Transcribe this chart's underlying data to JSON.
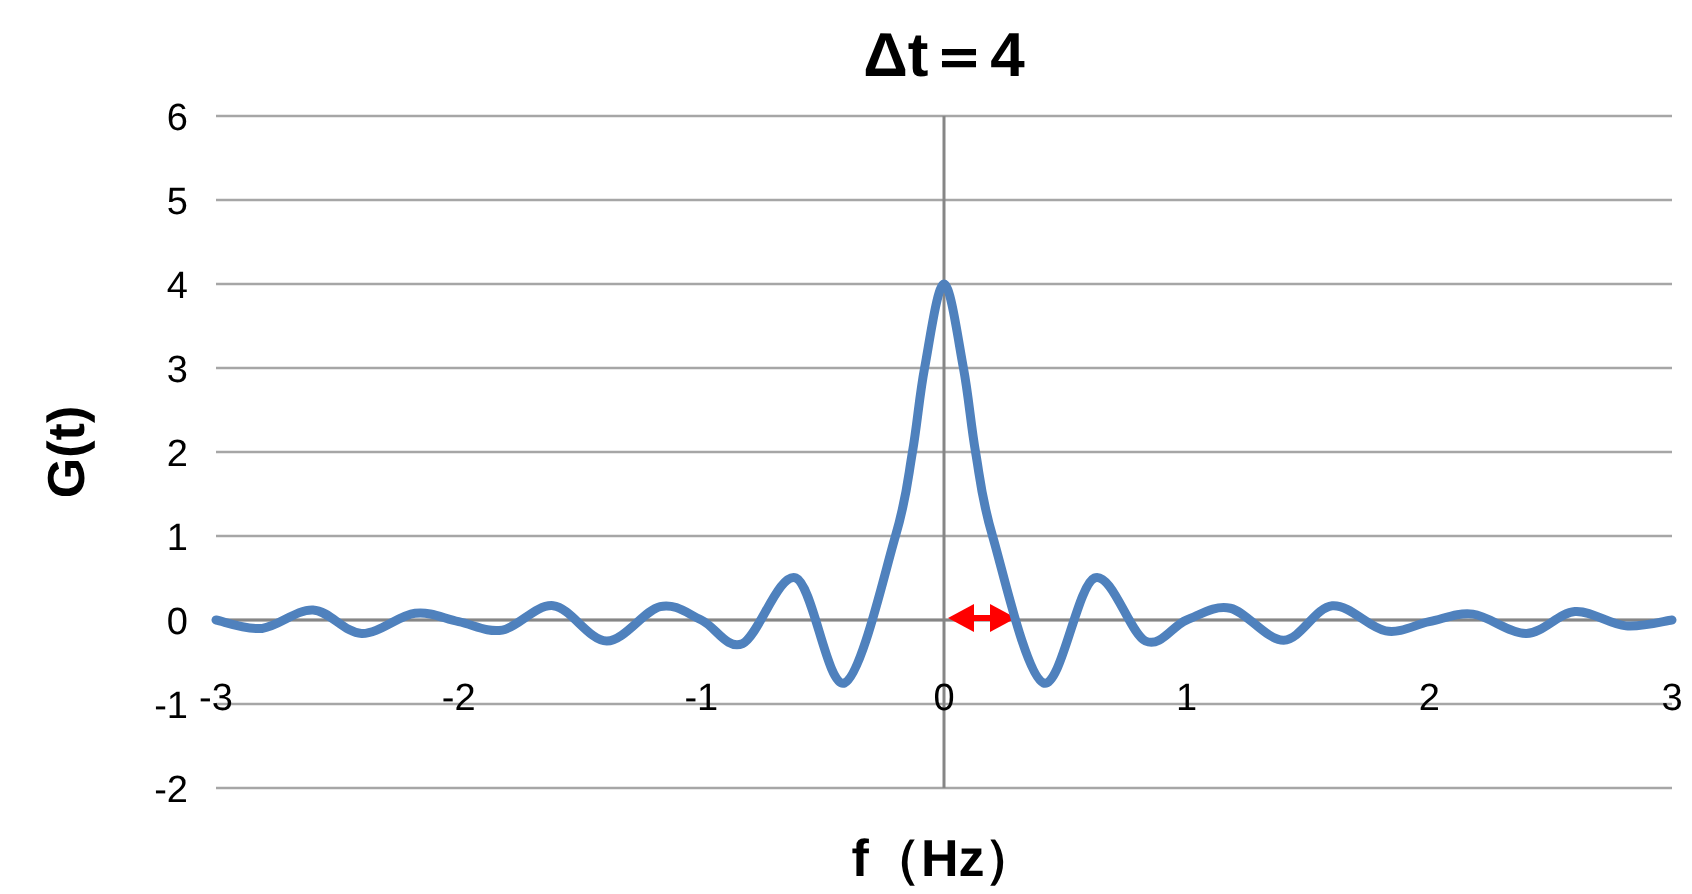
{
  "chart_data": {
    "type": "line",
    "title": "Δt＝4",
    "xlabel": "f（Hz）",
    "ylabel": "G(t)",
    "x": [
      -3,
      -2.81,
      -2.6,
      -2.4,
      -2.18,
      -2,
      -1.82,
      -1.61,
      -1.39,
      -1.17,
      -1,
      -0.83,
      -0.61,
      -0.41,
      -0.2,
      -0.13,
      -0.08,
      0,
      0.08,
      0.13,
      0.2,
      0.41,
      0.62,
      0.83,
      1,
      1.18,
      1.4,
      1.6,
      1.82,
      2,
      2.18,
      2.4,
      2.6,
      2.81,
      3
    ],
    "series": [
      {
        "color": "#4f81bd",
        "values": [
          0,
          -0.1,
          0.12,
          -0.16,
          0.08,
          -0.02,
          -0.12,
          0.17,
          -0.25,
          0.16,
          0,
          -0.28,
          0.5,
          -0.75,
          1,
          2,
          3,
          4,
          3,
          2,
          1,
          -0.75,
          0.5,
          -0.25,
          0,
          0.14,
          -0.24,
          0.17,
          -0.13,
          -0.02,
          0.07,
          -0.16,
          0.1,
          -0.07,
          0
        ]
      }
    ],
    "xlim": [
      -3,
      3
    ],
    "ylim": [
      -2,
      6
    ],
    "xticks": [
      -3,
      -2,
      -1,
      0,
      1,
      2,
      3
    ],
    "yticks": [
      -2,
      -1,
      0,
      1,
      2,
      3,
      4,
      5,
      6
    ],
    "grid": "y",
    "marker": "none",
    "line_style": "solid"
  }
}
